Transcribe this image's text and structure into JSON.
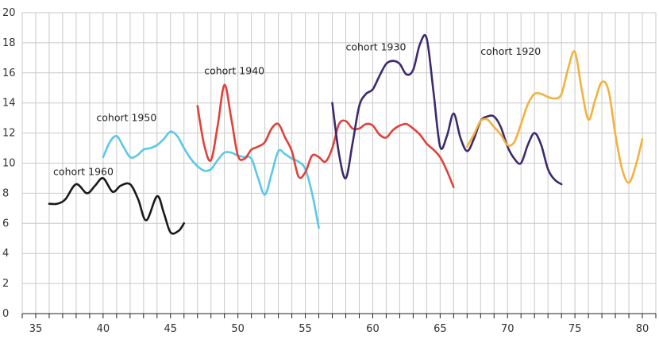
{
  "chart_data": {
    "type": "line",
    "title": "",
    "xlabel": "",
    "ylabel": "",
    "xlim": [
      34,
      81
    ],
    "ylim": [
      0,
      20
    ],
    "x_ticks": [
      35,
      40,
      45,
      50,
      55,
      60,
      65,
      70,
      75,
      80
    ],
    "y_ticks": [
      0,
      2,
      4,
      6,
      8,
      10,
      12,
      14,
      16,
      18,
      20
    ],
    "grid": {
      "vertical_every": 1,
      "horizontal_every": 2
    },
    "series": [
      {
        "name": "cohort 1960",
        "color": "#1a1a1a",
        "x": [
          36,
          36.6,
          37.2,
          38,
          38.8,
          39.4,
          40,
          40.7,
          41.3,
          42,
          42.6,
          43.2,
          44,
          44.5,
          45,
          45.6,
          46
        ],
        "y": [
          7.3,
          7.3,
          7.6,
          8.6,
          8.0,
          8.5,
          9.0,
          8.1,
          8.5,
          8.6,
          7.6,
          6.2,
          7.8,
          6.7,
          5.4,
          5.5,
          6.0
        ]
      },
      {
        "name": "cohort 1950",
        "color": "#5bc8e8",
        "x": [
          40,
          40.5,
          41,
          41.5,
          42,
          42.5,
          43,
          43.5,
          44,
          44.5,
          45,
          45.5,
          46,
          46.5,
          47,
          47.5,
          48,
          48.5,
          49,
          49.5,
          50,
          50.5,
          51,
          51.5,
          52,
          52.5,
          53,
          53.5,
          54,
          54.5,
          55,
          55.5,
          56
        ],
        "y": [
          10.4,
          11.4,
          11.8,
          11.1,
          10.4,
          10.5,
          10.9,
          11.0,
          11.2,
          11.6,
          12.1,
          11.8,
          11.0,
          10.3,
          9.8,
          9.5,
          9.6,
          10.2,
          10.7,
          10.7,
          10.5,
          10.4,
          10.3,
          9.0,
          7.9,
          9.3,
          10.8,
          10.6,
          10.3,
          10.1,
          9.6,
          8.0,
          5.7
        ]
      },
      {
        "name": "cohort 1940",
        "color": "#e0413a",
        "x": [
          47,
          47.5,
          48,
          48.5,
          49,
          49.5,
          50,
          50.5,
          51,
          51.5,
          52,
          52.5,
          53,
          53.5,
          54,
          54.5,
          55,
          55.5,
          56,
          56.5,
          57,
          57.5,
          58,
          58.5,
          59,
          59.5,
          60,
          60.5,
          61,
          61.5,
          62,
          62.5,
          63,
          63.5,
          64,
          64.5,
          65,
          65.5,
          66
        ],
        "y": [
          13.8,
          11.2,
          10.2,
          12.5,
          15.2,
          13.0,
          10.5,
          10.3,
          10.9,
          11.1,
          11.4,
          12.3,
          12.6,
          11.7,
          10.8,
          9.1,
          9.4,
          10.5,
          10.4,
          10.1,
          11.0,
          12.6,
          12.8,
          12.3,
          12.3,
          12.6,
          12.5,
          11.9,
          11.7,
          12.2,
          12.5,
          12.6,
          12.3,
          11.9,
          11.3,
          10.9,
          10.4,
          9.5,
          8.4
        ]
      },
      {
        "name": "cohort 1930",
        "color": "#3d2a6e",
        "x": [
          57,
          57.5,
          58,
          58.5,
          59,
          59.5,
          60,
          60.5,
          61,
          61.5,
          62,
          62.5,
          63,
          63.5,
          64,
          64.5,
          65,
          65.5,
          66,
          66.5,
          67,
          67.5,
          68,
          68.5,
          69,
          69.5,
          70,
          70.5,
          71,
          71.5,
          72,
          72.5,
          73,
          73.5,
          74
        ],
        "y": [
          14.0,
          10.6,
          9.0,
          11.3,
          13.8,
          14.6,
          14.9,
          15.8,
          16.6,
          16.8,
          16.6,
          15.9,
          16.2,
          17.9,
          18.3,
          14.8,
          11.1,
          11.8,
          13.3,
          11.7,
          10.8,
          11.6,
          12.8,
          13.1,
          13.1,
          12.4,
          11.1,
          10.3,
          10.0,
          11.2,
          12.0,
          11.2,
          9.6,
          8.9,
          8.6
        ]
      },
      {
        "name": "cohort 1920",
        "color": "#f2b23e",
        "x": [
          67,
          67.5,
          68,
          68.5,
          69,
          69.5,
          70,
          70.5,
          71,
          71.5,
          72,
          72.5,
          73,
          73.5,
          74,
          74.5,
          75,
          75.5,
          76,
          76.5,
          77,
          77.5,
          78,
          78.5,
          79,
          79.5,
          80
        ],
        "y": [
          11.1,
          11.9,
          12.8,
          12.9,
          12.4,
          11.9,
          11.2,
          11.4,
          12.6,
          13.9,
          14.6,
          14.6,
          14.4,
          14.3,
          14.6,
          16.3,
          17.4,
          14.9,
          12.9,
          14.2,
          15.4,
          14.8,
          11.9,
          9.6,
          8.7,
          9.8,
          11.6
        ]
      }
    ],
    "annotations": [
      {
        "text": "cohort 1960",
        "x": 36.3,
        "y": 9.2,
        "series": 0
      },
      {
        "text": "cohort 1950",
        "x": 39.5,
        "y": 12.8,
        "series": 1
      },
      {
        "text": "cohort 1940",
        "x": 47.5,
        "y": 15.9,
        "series": 2
      },
      {
        "text": "cohort 1930",
        "x": 58,
        "y": 17.5,
        "series": 3
      },
      {
        "text": "cohort 1920",
        "x": 68,
        "y": 17.2,
        "series": 4
      }
    ]
  }
}
